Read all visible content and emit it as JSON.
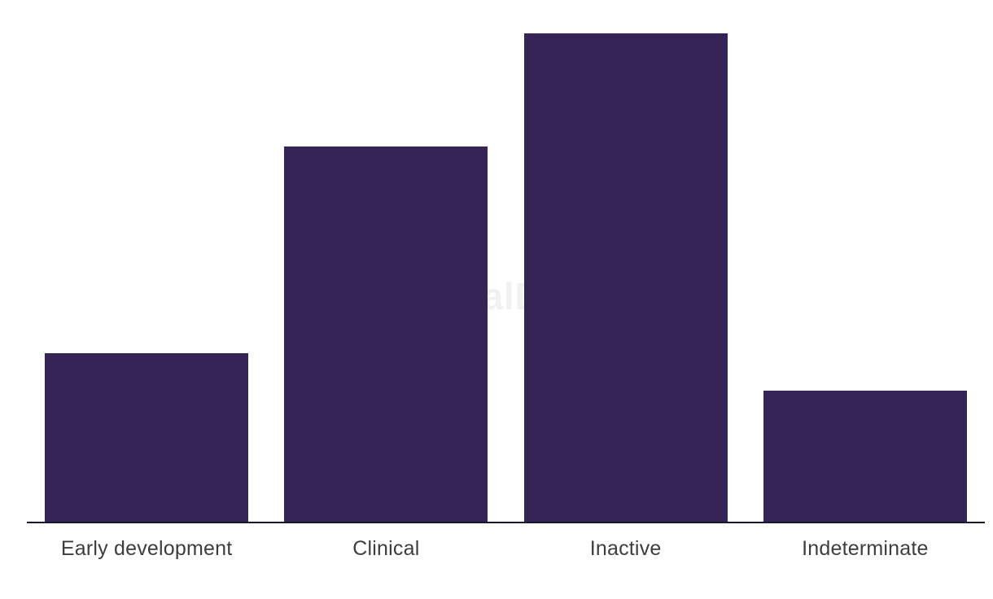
{
  "page": {
    "background": "#ffffff"
  },
  "watermark": {
    "text": "GlobalData",
    "color": "#c7c7c7",
    "opacity": 0.23
  },
  "chart_data": {
    "type": "bar",
    "title": "",
    "xlabel": "",
    "ylabel": "",
    "categories": [
      "Early development",
      "Clinical",
      "Inactive",
      "Indeterminate"
    ],
    "values": [
      207,
      461,
      600,
      161
    ],
    "ylim": [
      0,
      641
    ],
    "grid": false,
    "legend": false,
    "bar_color": "#362456",
    "axis_line_color": "#181830",
    "label_color": "#3d3d3d"
  }
}
